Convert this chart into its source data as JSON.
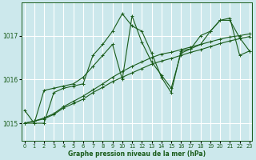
{
  "title": "Graphe pression niveau de la mer (hPa)",
  "bg_color": "#cce8ec",
  "grid_color": "#ffffff",
  "line_color": "#1a5c1a",
  "x_ticks": [
    0,
    1,
    2,
    3,
    4,
    5,
    6,
    7,
    8,
    9,
    10,
    11,
    12,
    13,
    14,
    15,
    16,
    17,
    18,
    19,
    20,
    21,
    22,
    23
  ],
  "y_ticks": [
    1015,
    1016,
    1017
  ],
  "ylim": [
    1014.6,
    1017.75
  ],
  "xlim": [
    -0.3,
    23.3
  ],
  "series": [
    [
      1015.3,
      1015.0,
      1015.0,
      1015.7,
      1015.8,
      1015.85,
      1015.9,
      1016.55,
      1016.8,
      1017.1,
      1017.5,
      1017.22,
      1017.1,
      1016.6,
      1016.05,
      1015.7,
      1016.65,
      1016.7,
      1017.0,
      1017.1,
      1017.35,
      1017.4,
      1016.55,
      1016.65
    ],
    [
      1015.0,
      1015.0,
      1015.75,
      1015.8,
      1015.85,
      1015.9,
      1016.05,
      1016.3,
      1016.55,
      1016.8,
      1016.0,
      1017.45,
      1016.85,
      1016.4,
      1016.1,
      1015.8,
      1016.6,
      1016.7,
      1016.8,
      1017.1,
      1017.35,
      1017.35,
      1016.95,
      1016.65
    ],
    [
      1015.0,
      1015.05,
      1015.1,
      1015.2,
      1015.35,
      1015.45,
      1015.55,
      1015.7,
      1015.82,
      1015.95,
      1016.05,
      1016.15,
      1016.25,
      1016.35,
      1016.42,
      1016.48,
      1016.55,
      1016.62,
      1016.68,
      1016.75,
      1016.82,
      1016.88,
      1016.93,
      1016.98
    ],
    [
      1015.0,
      1015.05,
      1015.12,
      1015.22,
      1015.38,
      1015.5,
      1015.62,
      1015.76,
      1015.9,
      1016.05,
      1016.18,
      1016.3,
      1016.4,
      1016.5,
      1016.58,
      1016.62,
      1016.68,
      1016.74,
      1016.8,
      1016.86,
      1016.92,
      1016.97,
      1017.0,
      1017.04
    ]
  ]
}
